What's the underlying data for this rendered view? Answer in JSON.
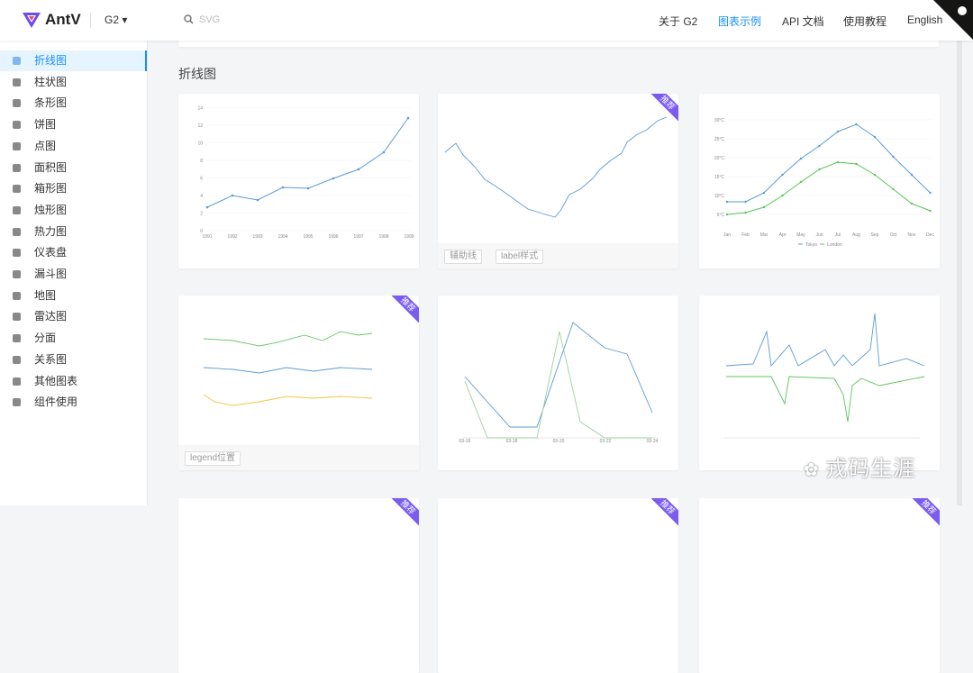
{
  "header": {
    "logo": "AntV",
    "product": "G2",
    "search_placeholder": "SVG",
    "nav": [
      "关于 G2",
      "图表示例",
      "API 文档",
      "使用教程",
      "English"
    ],
    "active_nav": 1
  },
  "sidebar": {
    "items": [
      "折线图",
      "柱状图",
      "条形图",
      "饼图",
      "点图",
      "面积图",
      "箱形图",
      "烛形图",
      "热力图",
      "仪表盘",
      "漏斗图",
      "地图",
      "雷达图",
      "分面",
      "关系图",
      "其他图表",
      "组件使用"
    ],
    "active": 0
  },
  "section": {
    "title": "折线图"
  },
  "cards": [
    {
      "x_labels": [
        "1991",
        "1992",
        "1993",
        "1994",
        "1995",
        "1996",
        "1997",
        "1998",
        "1999"
      ],
      "y_labels": [
        "0",
        "2",
        "4",
        "6",
        "8",
        "10",
        "12",
        "14"
      ]
    },
    {
      "badge": "推荐",
      "tags": [
        "辅助线",
        "label样式"
      ]
    },
    {
      "x_labels": [
        "Jan",
        "Feb",
        "Mar",
        "Apr",
        "May",
        "Jun",
        "Jul",
        "Aug",
        "Sep",
        "Oct",
        "Nov",
        "Dec"
      ],
      "y_labels": [
        "5°C",
        "10°C",
        "15°C",
        "20°C",
        "25°C",
        "30°C"
      ],
      "legend": [
        "Tokyo",
        "London"
      ]
    },
    {
      "badge": "推荐",
      "tags": [
        "legend位置"
      ]
    },
    {
      "x_labels": [
        "03-16",
        "03-18",
        "03-20",
        "03-22",
        "03-24"
      ]
    },
    {},
    {
      "badge": "推荐"
    },
    {
      "badge": "推荐"
    },
    {
      "badge": "推荐"
    }
  ],
  "watermark": "戎码生涯"
}
